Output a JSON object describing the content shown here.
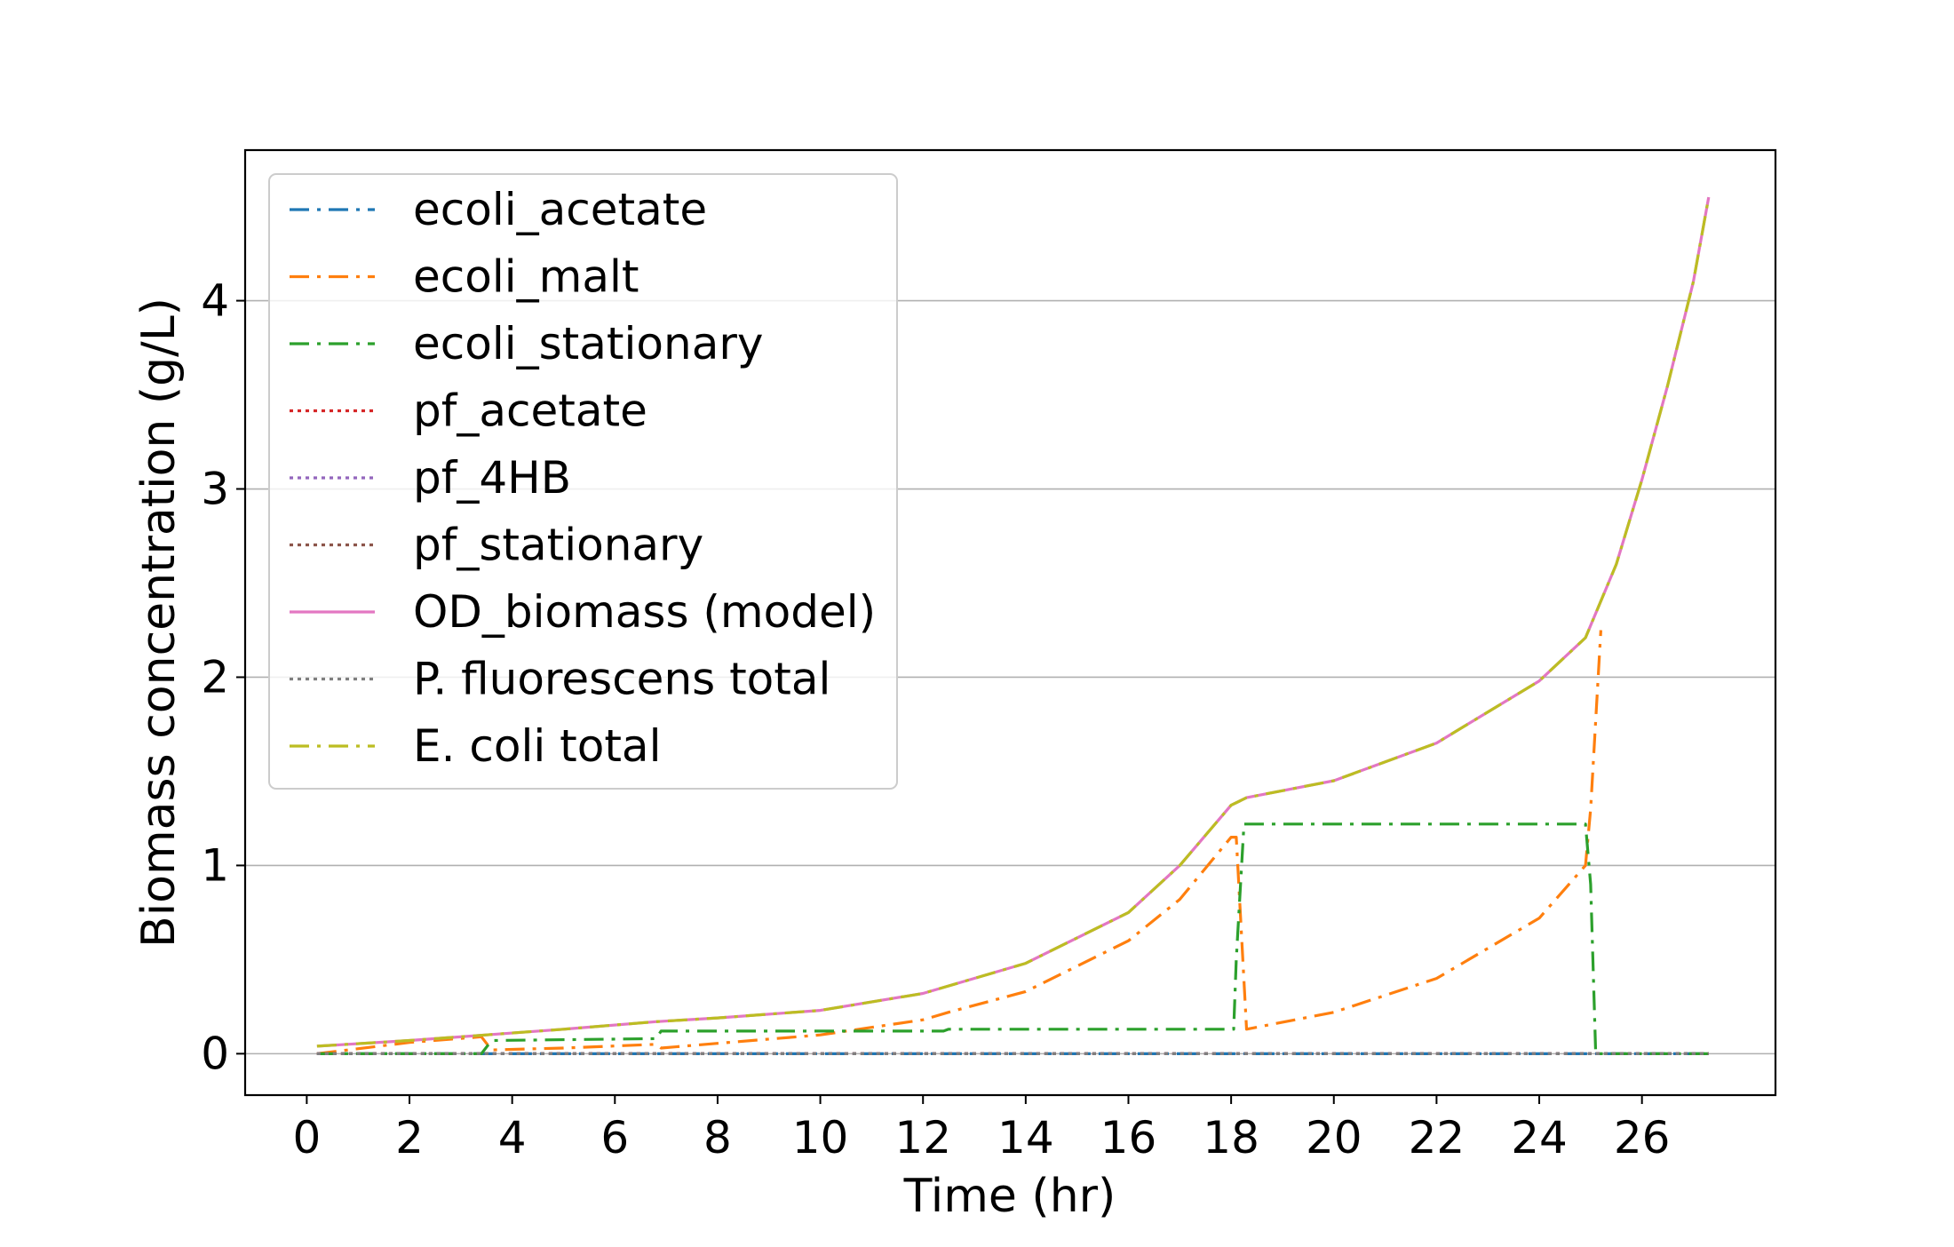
{
  "chart_data": {
    "type": "line",
    "title": "",
    "xlabel": "Time (hr)",
    "ylabel": "Biomass concentration (g/L)",
    "xlim": [
      -1.2,
      28.6
    ],
    "ylim": [
      -0.22,
      4.8
    ],
    "xticks": [
      0,
      2,
      4,
      6,
      8,
      10,
      12,
      14,
      16,
      18,
      20,
      22,
      24,
      26
    ],
    "yticks": [
      0,
      1,
      2,
      3,
      4
    ],
    "grid": "horizontal",
    "legend_position": "upper-left",
    "series": [
      {
        "name": "ecoli_acetate",
        "color": "#1f77b4",
        "style": "dashdot",
        "x": [
          0.2,
          27.3
        ],
        "y": [
          0.0,
          0.0
        ]
      },
      {
        "name": "ecoli_malt",
        "color": "#ff7f0e",
        "style": "dashdot",
        "x": [
          0.2,
          2,
          3.4,
          3.6,
          5,
          6.8,
          6.9,
          8,
          10,
          12,
          12.5,
          14,
          16,
          17,
          18,
          18.1,
          18.3,
          20,
          22,
          24,
          24.9,
          25.0,
          25.2
        ],
        "y": [
          0.0,
          0.06,
          0.09,
          0.02,
          0.03,
          0.05,
          0.03,
          0.055,
          0.1,
          0.18,
          0.22,
          0.33,
          0.6,
          0.82,
          1.15,
          1.15,
          0.13,
          0.22,
          0.4,
          0.72,
          1.0,
          1.3,
          2.25
        ]
      },
      {
        "name": "ecoli_stationary",
        "color": "#2ca02c",
        "style": "dashdot",
        "x": [
          0.2,
          3.4,
          3.6,
          6.8,
          6.9,
          12.4,
          12.5,
          18.05,
          18.1,
          18.25,
          24.9,
          25.0,
          25.1,
          27.3
        ],
        "y": [
          0.0,
          0.0,
          0.07,
          0.08,
          0.12,
          0.12,
          0.13,
          0.13,
          0.5,
          1.22,
          1.22,
          0.9,
          0.0,
          0.0
        ]
      },
      {
        "name": "pf_acetate",
        "color": "#d62728",
        "style": "dotted",
        "x": [
          0.2,
          27.3
        ],
        "y": [
          0.0,
          0.0
        ]
      },
      {
        "name": "pf_4HB",
        "color": "#9467bd",
        "style": "dotted",
        "x": [
          0.2,
          27.3
        ],
        "y": [
          0.0,
          0.0
        ]
      },
      {
        "name": "pf_stationary",
        "color": "#8c564b",
        "style": "dotted",
        "x": [
          0.2,
          27.3
        ],
        "y": [
          0.0,
          0.0
        ]
      },
      {
        "name": "OD_biomass (model)",
        "color": "#e377c2",
        "style": "solid",
        "x": [
          0.2,
          2,
          3.5,
          5,
          6.8,
          8,
          10,
          12,
          14,
          16,
          17,
          18,
          18.3,
          20,
          22,
          24,
          24.9,
          25.5,
          26,
          26.5,
          27,
          27.3
        ],
        "y": [
          0.04,
          0.07,
          0.1,
          0.13,
          0.17,
          0.19,
          0.23,
          0.32,
          0.48,
          0.75,
          1.0,
          1.32,
          1.36,
          1.45,
          1.65,
          1.98,
          2.21,
          2.6,
          3.05,
          3.55,
          4.1,
          4.55
        ]
      },
      {
        "name": "P. fluorescens total",
        "color": "#7f7f7f",
        "style": "dotted",
        "x": [
          0.2,
          27.3
        ],
        "y": [
          0.0,
          0.0
        ]
      },
      {
        "name": "E. coli total",
        "color": "#bcbd22",
        "style": "dashdot",
        "x": [
          0.2,
          2,
          3.5,
          5,
          6.8,
          8,
          10,
          12,
          14,
          16,
          17,
          18,
          18.3,
          20,
          22,
          24,
          24.9,
          25.5,
          26,
          26.5,
          27,
          27.3
        ],
        "y": [
          0.04,
          0.07,
          0.1,
          0.13,
          0.17,
          0.19,
          0.23,
          0.32,
          0.48,
          0.75,
          1.0,
          1.32,
          1.36,
          1.45,
          1.65,
          1.98,
          2.21,
          2.6,
          3.05,
          3.55,
          4.1,
          4.55
        ]
      }
    ]
  }
}
